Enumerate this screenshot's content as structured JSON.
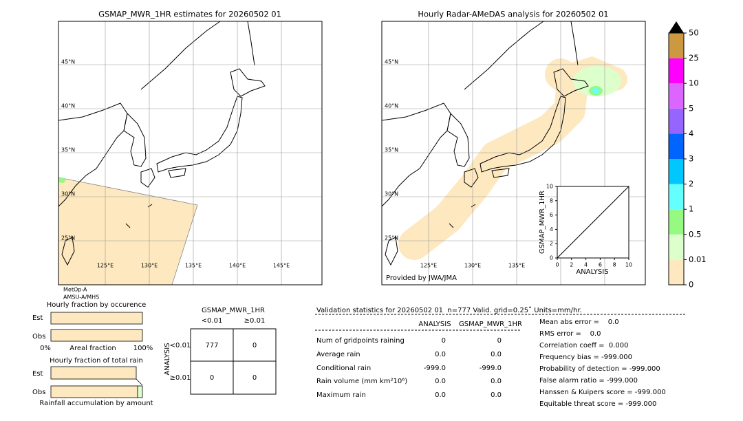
{
  "left_map": {
    "title": "GSMAP_MWR_1HR estimates for 20260502 01",
    "lat_labels": [
      "45°N",
      "40°N",
      "35°N",
      "30°N",
      "25°N"
    ],
    "lon_labels": [
      "125°E",
      "130°E",
      "135°E",
      "140°E",
      "145°E"
    ],
    "satellite": [
      "MetOp-A",
      "AMSU-A/MHS"
    ]
  },
  "right_map": {
    "title": "Hourly Radar-AMeDAS analysis for 20260502 01",
    "lat_labels": [
      "45°N",
      "40°N",
      "35°N",
      "30°N",
      "25°N"
    ],
    "lon_labels": [
      "125°E",
      "130°E",
      "135°E"
    ],
    "credit": "Provided by JWA/JMA"
  },
  "colorbar": {
    "ticks": [
      0,
      0.01,
      0.5,
      1,
      2,
      3,
      4,
      5,
      10,
      25,
      50
    ],
    "colors": [
      "#fde8c0",
      "#dcffcc",
      "#96fa82",
      "#64ffff",
      "#00c8ff",
      "#0064ff",
      "#9664ff",
      "#dc64ff",
      "#ff00ff",
      "#cc9940"
    ],
    "extend_color": "#000000"
  },
  "scatter_inset": {
    "xlabel": "ANALYSIS",
    "ylabel": "GSMAP_MWR_1HR",
    "xticks": [
      0,
      2,
      4,
      6,
      8,
      10
    ],
    "yticks": [
      0,
      2,
      4,
      6,
      8,
      10
    ]
  },
  "occurrence": {
    "title": "Hourly fraction by occurence",
    "rows": [
      "Est",
      "Obs"
    ],
    "axis_labels": [
      "0%",
      "Areal fraction",
      "100%"
    ]
  },
  "total_rain": {
    "title": "Hourly fraction of total rain",
    "rows": [
      "Est",
      "Obs"
    ],
    "footer": "Rainfall accumulation by amount"
  },
  "contingency": {
    "title": "GSMAP_MWR_1HR",
    "col_headers": [
      "<0.01",
      "≥0.01"
    ],
    "row_title": "ANALYSIS",
    "row_headers": [
      "<0.01",
      "≥0.01"
    ],
    "cells": [
      [
        "777",
        "0"
      ],
      [
        "0",
        "0"
      ]
    ]
  },
  "validation": {
    "header": "Validation statistics for 20260502 01  n=777 Valid. grid=0.25˚ Units=mm/hr.",
    "col_headers": [
      "ANALYSIS",
      "GSMAP_MWR_1HR"
    ],
    "rows": [
      {
        "label": "Num of gridpoints raining",
        "values": [
          "0",
          "0"
        ]
      },
      {
        "label": "Average rain",
        "values": [
          "0.0",
          "0.0"
        ]
      },
      {
        "label": "Conditional rain",
        "values": [
          "-999.0",
          "-999.0"
        ]
      },
      {
        "label": "Rain volume (mm km²10⁶)",
        "values": [
          "0.0",
          "0.0"
        ]
      },
      {
        "label": "Maximum rain",
        "values": [
          "0.0",
          "0.0"
        ]
      }
    ],
    "scores": [
      "Mean abs error =    0.0",
      "RMS error =    0.0",
      "Correlation coeff =  0.000",
      "Frequency bias = -999.000",
      "Probability of detection = -999.000",
      "False alarm ratio = -999.000",
      "Hanssen & Kuipers score = -999.000",
      "Equitable threat score = -999.000"
    ]
  }
}
